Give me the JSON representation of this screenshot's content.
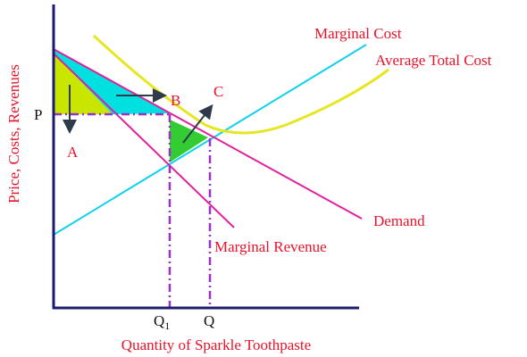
{
  "curves": {
    "marginal_cost": "Marginal Cost",
    "average_total_cost": "Average Total Cost",
    "demand": "Demand",
    "marginal_revenue": "Marginal Revenue"
  },
  "points": {
    "a": "A",
    "b": "B",
    "c": "C",
    "p": "P"
  },
  "quantities": {
    "q1": {
      "letter": "Q",
      "sub": "1"
    },
    "q": "Q"
  },
  "axes": {
    "y_title": "Price, Costs, Revenues",
    "x_title": "Quantity of Sparkle Toothpaste"
  }
}
